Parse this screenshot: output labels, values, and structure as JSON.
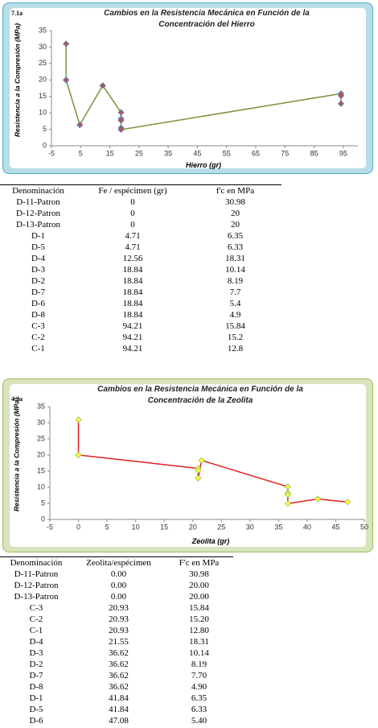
{
  "chart_data": [
    {
      "type": "line",
      "panel_label": "7.1a",
      "title": "Cambios en la Resistencia Mecánica en Función de la Concentración del Hierro",
      "xlabel": "Hierro (gr)",
      "ylabel": "Resistencia a la Compresión (MPa)",
      "x": [
        0,
        0,
        0,
        4.71,
        4.71,
        12.56,
        18.84,
        18.84,
        18.84,
        18.84,
        18.84,
        94.21,
        94.21,
        94.21
      ],
      "values": [
        30.98,
        20,
        20,
        6.35,
        6.33,
        18.31,
        10.14,
        8.19,
        7.7,
        5.4,
        4.9,
        15.84,
        15.2,
        12.8
      ],
      "color": "#77933c",
      "marker_color": "#c0504d",
      "marker_edge": "#4f81bd",
      "xlim": [
        -5,
        100
      ],
      "xticks": [
        -5,
        5,
        15,
        25,
        35,
        45,
        55,
        65,
        75,
        85,
        95
      ],
      "ylim": [
        0,
        35
      ],
      "yticks": [
        0,
        5,
        10,
        15,
        20,
        25,
        30,
        35
      ],
      "grid": false
    },
    {
      "type": "line",
      "panel_label": "4.2a",
      "title": "Cambios en la Resistencia Mecánica en Función de la Concentración de la Zeolita",
      "xlabel": "Zeolita (gr)",
      "ylabel": "Resistencia a la Compresión (MPa)",
      "x": [
        0,
        0,
        20.93,
        20.93,
        20.93,
        21.55,
        36.62,
        36.62,
        36.62,
        36.62,
        41.84,
        41.84,
        47.08
      ],
      "values": [
        30.98,
        20,
        15.84,
        15.2,
        12.8,
        18.31,
        10.14,
        8.19,
        7.7,
        4.9,
        6.35,
        6.33,
        5.4
      ],
      "color": "#e0201b",
      "marker_color": "#ffff40",
      "marker_edge": "#9bbb59",
      "xlim": [
        -5,
        50
      ],
      "xticks": [
        -5,
        0,
        5,
        10,
        15,
        20,
        25,
        30,
        35,
        40,
        45,
        50
      ],
      "ylim": [
        0,
        35
      ],
      "yticks": [
        0,
        5,
        10,
        15,
        20,
        25,
        30,
        35
      ],
      "grid": false
    }
  ],
  "tables": [
    {
      "header": [
        "Denominación",
        "Fe / espécimen (gr)",
        "f'c en MPa"
      ],
      "rows": [
        [
          "D-11-Patron",
          "0",
          "30.98"
        ],
        [
          "D-12-Patron",
          "0",
          "20"
        ],
        [
          "D-13-Patron",
          "0",
          "20"
        ],
        [
          "D-1",
          "4.71",
          "6.35"
        ],
        [
          "D-5",
          "4.71",
          "6.33"
        ],
        [
          "D-4",
          "12.56",
          "18.31"
        ],
        [
          "D-3",
          "18.84",
          "10.14"
        ],
        [
          "D-2",
          "18.84",
          "8.19"
        ],
        [
          "D-7",
          "18.84",
          "7.7"
        ],
        [
          "D-6",
          "18.84",
          "5.4"
        ],
        [
          "D-8",
          "18.84",
          "4.9"
        ],
        [
          "C-3",
          "94.21",
          "15.84"
        ],
        [
          "C-2",
          "94.21",
          "15.2"
        ],
        [
          "C-1",
          "94.21",
          "12.8"
        ]
      ]
    },
    {
      "header": [
        "Denominación",
        "Zeolita/espécimen",
        "F'c en MPa"
      ],
      "rows": [
        [
          "D-11-Patron",
          "0.00",
          "30.98"
        ],
        [
          "D-12-Patron",
          "0.00",
          "20.00"
        ],
        [
          "D-13-Patron",
          "0.00",
          "20.00"
        ],
        [
          "C-3",
          "20.93",
          "15.84"
        ],
        [
          "C-2",
          "20.93",
          "15.20"
        ],
        [
          "C-1",
          "20.93",
          "12.80"
        ],
        [
          "D-4",
          "21.55",
          "18.31"
        ],
        [
          "D-3",
          "36.62",
          "10.14"
        ],
        [
          "D-2",
          "36.62",
          "8.19"
        ],
        [
          "D-7",
          "36.62",
          "7.70"
        ],
        [
          "D-8",
          "36.62",
          "4.90"
        ],
        [
          "D-1",
          "41.84",
          "6.35"
        ],
        [
          "D-5",
          "41.84",
          "6.33"
        ],
        [
          "D-6",
          "47.08",
          "5.40"
        ]
      ]
    }
  ]
}
